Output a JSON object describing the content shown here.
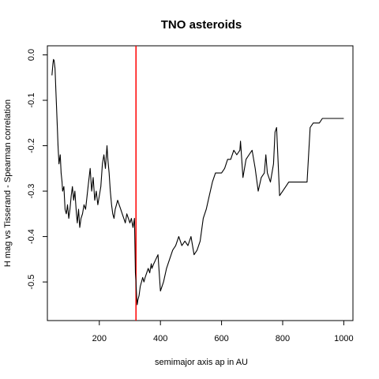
{
  "chart_data": {
    "type": "line",
    "title": "TNO asteroids",
    "xlabel": "semimajor axis ap in AU",
    "ylabel": "H mag vs Tisserand - Spearman correlation",
    "xlim": [
      30,
      1030
    ],
    "ylim": [
      -0.585,
      0.02
    ],
    "xticks": [
      200,
      400,
      600,
      800,
      1000
    ],
    "xtick_labels": [
      "200",
      "400",
      "600",
      "800",
      "1000"
    ],
    "yticks": [
      0.0,
      -0.1,
      -0.2,
      -0.3,
      -0.4,
      -0.5
    ],
    "ytick_labels": [
      "0.0",
      "-0.1",
      "-0.2",
      "-0.3",
      "-0.4",
      "-0.5"
    ],
    "reference_line": {
      "x": 320,
      "color": "#ff0000"
    },
    "grid": false,
    "series": [
      {
        "color": "#000000",
        "x": [
          45,
          48,
          50,
          52,
          55,
          58,
          62,
          65,
          68,
          72,
          75,
          78,
          80,
          84,
          88,
          92,
          96,
          100,
          104,
          108,
          112,
          116,
          120,
          125,
          128,
          132,
          136,
          140,
          145,
          150,
          155,
          160,
          165,
          170,
          175,
          180,
          185,
          190,
          195,
          200,
          205,
          210,
          215,
          220,
          225,
          228,
          232,
          236,
          240,
          244,
          248,
          252,
          256,
          260,
          265,
          270,
          275,
          280,
          285,
          290,
          295,
          300,
          305,
          310,
          315,
          318,
          320,
          322,
          324,
          326,
          330,
          334,
          338,
          342,
          346,
          350,
          355,
          360,
          365,
          370,
          372,
          378,
          385,
          392,
          400,
          410,
          420,
          430,
          440,
          450,
          460,
          470,
          480,
          490,
          500,
          510,
          520,
          530,
          540,
          550,
          560,
          570,
          580,
          590,
          600,
          610,
          620,
          630,
          640,
          650,
          660,
          662,
          670,
          680,
          690,
          700,
          710,
          720,
          730,
          740,
          745,
          750,
          760,
          770,
          775,
          780,
          790,
          800,
          810,
          820,
          830,
          840,
          850,
          860,
          870,
          880,
          890,
          900,
          910,
          920,
          930,
          940,
          950,
          960,
          970,
          980,
          990,
          1000
        ],
        "y": [
          -0.045,
          -0.02,
          -0.01,
          -0.012,
          -0.03,
          -0.08,
          -0.15,
          -0.2,
          -0.24,
          -0.22,
          -0.26,
          -0.28,
          -0.3,
          -0.29,
          -0.34,
          -0.35,
          -0.33,
          -0.36,
          -0.34,
          -0.31,
          -0.29,
          -0.32,
          -0.3,
          -0.35,
          -0.37,
          -0.34,
          -0.38,
          -0.36,
          -0.35,
          -0.33,
          -0.34,
          -0.31,
          -0.28,
          -0.25,
          -0.3,
          -0.27,
          -0.32,
          -0.3,
          -0.33,
          -0.31,
          -0.29,
          -0.24,
          -0.22,
          -0.25,
          -0.2,
          -0.23,
          -0.26,
          -0.3,
          -0.33,
          -0.35,
          -0.36,
          -0.34,
          -0.33,
          -0.32,
          -0.33,
          -0.34,
          -0.35,
          -0.36,
          -0.37,
          -0.35,
          -0.36,
          -0.37,
          -0.36,
          -0.38,
          -0.36,
          -0.48,
          -0.5,
          -0.53,
          -0.55,
          -0.54,
          -0.53,
          -0.51,
          -0.5,
          -0.49,
          -0.5,
          -0.49,
          -0.48,
          -0.47,
          -0.48,
          -0.46,
          -0.47,
          -0.46,
          -0.45,
          -0.44,
          -0.52,
          -0.5,
          -0.47,
          -0.45,
          -0.43,
          -0.42,
          -0.4,
          -0.42,
          -0.41,
          -0.42,
          -0.4,
          -0.44,
          -0.43,
          -0.41,
          -0.36,
          -0.34,
          -0.31,
          -0.28,
          -0.26,
          -0.26,
          -0.26,
          -0.25,
          -0.23,
          -0.23,
          -0.21,
          -0.22,
          -0.21,
          -0.19,
          -0.27,
          -0.23,
          -0.22,
          -0.21,
          -0.25,
          -0.3,
          -0.27,
          -0.26,
          -0.22,
          -0.26,
          -0.28,
          -0.24,
          -0.17,
          -0.16,
          -0.31,
          -0.3,
          -0.29,
          -0.28,
          -0.28,
          -0.28,
          -0.28,
          -0.28,
          -0.28,
          -0.28,
          -0.16,
          -0.15,
          -0.15,
          -0.15,
          -0.14,
          -0.14,
          -0.14,
          -0.14,
          -0.14,
          -0.14,
          -0.14,
          -0.14
        ]
      }
    ]
  }
}
